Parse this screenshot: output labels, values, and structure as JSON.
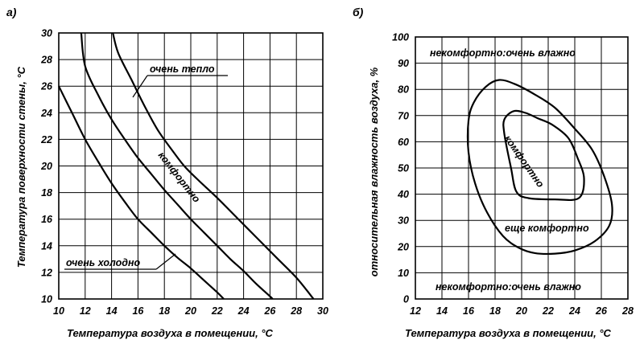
{
  "chart_data": [
    {
      "panel": "a)",
      "type": "line",
      "xlabel": "Температура воздуха в помещении, °C",
      "ylabel": "Температура поверхности стены, °C",
      "xlim": [
        10,
        30
      ],
      "ylim": [
        10,
        30
      ],
      "xticks": [
        "10",
        "12",
        "14",
        "16",
        "18",
        "20",
        "22",
        "24",
        "26",
        "28",
        "30"
      ],
      "yticks": [
        "10",
        "12",
        "14",
        "16",
        "18",
        "20",
        "22",
        "24",
        "26",
        "28",
        "30"
      ],
      "grid": true,
      "series": [
        {
          "points": [
            [
              10,
              26
            ],
            [
              11,
              24
            ],
            [
              12,
              22
            ],
            [
              13,
              20.3
            ],
            [
              14,
              18.7
            ],
            [
              15,
              17.3
            ],
            [
              16,
              16
            ],
            [
              17,
              15
            ],
            [
              18,
              14
            ],
            [
              19,
              13.1
            ],
            [
              20,
              12.3
            ],
            [
              21,
              11.4
            ],
            [
              22,
              10.5
            ],
            [
              22.5,
              10
            ]
          ]
        },
        {
          "points": [
            [
              11.7,
              30
            ],
            [
              12,
              27.5
            ],
            [
              13,
              25.3
            ],
            [
              14,
              23.5
            ],
            [
              15,
              22
            ],
            [
              16,
              20.6
            ],
            [
              17,
              19.4
            ],
            [
              18,
              18.2
            ],
            [
              19,
              17.1
            ],
            [
              20,
              16
            ],
            [
              21,
              15
            ],
            [
              22,
              14
            ],
            [
              23,
              13
            ],
            [
              24,
              12.1
            ],
            [
              25,
              11.1
            ],
            [
              26,
              10.2
            ],
            [
              26.2,
              10
            ]
          ]
        },
        {
          "points": [
            [
              14.1,
              30
            ],
            [
              14.5,
              28.5
            ],
            [
              15.5,
              26.5
            ],
            [
              16.5,
              24.5
            ],
            [
              17.5,
              22.7
            ],
            [
              18.5,
              21.3
            ],
            [
              19.5,
              20
            ],
            [
              20.5,
              19
            ],
            [
              22,
              17.6
            ],
            [
              23.5,
              16.1
            ],
            [
              25,
              14.6
            ],
            [
              26.5,
              13.1
            ],
            [
              28,
              11.6
            ],
            [
              29.3,
              10
            ]
          ]
        }
      ],
      "annotations": [
        {
          "text": "очень тепло",
          "x": 17,
          "y": 26.7
        },
        {
          "text": "комфортно",
          "x": 20,
          "y": 19.2
        },
        {
          "text": "очень холодно",
          "x": 11,
          "y": 12.2
        }
      ]
    },
    {
      "panel": "б)",
      "type": "line",
      "xlabel": "Температура воздуха в помещении, °C",
      "ylabel": "относительная влажность воздуха, %",
      "xlim": [
        12,
        28
      ],
      "ylim": [
        0,
        100
      ],
      "xticks": [
        "12",
        "14",
        "16",
        "18",
        "20",
        "22",
        "24",
        "26",
        "28"
      ],
      "yticks": [
        "0",
        "10",
        "20",
        "30",
        "40",
        "50",
        "60",
        "70",
        "80",
        "90",
        "100"
      ],
      "grid": true,
      "series": [
        {
          "closed": true,
          "points": [
            [
              16,
              68
            ],
            [
              16.4,
              75
            ],
            [
              17.3,
              81
            ],
            [
              18.3,
              83.6
            ],
            [
              19.5,
              82
            ],
            [
              21,
              78
            ],
            [
              22.5,
              73
            ],
            [
              24,
              65
            ],
            [
              25.3,
              57
            ],
            [
              26.2,
              47
            ],
            [
              26.8,
              36
            ],
            [
              26.6,
              28
            ],
            [
              25.5,
              22
            ],
            [
              24,
              18.5
            ],
            [
              22.5,
              17.3
            ],
            [
              21,
              17.5
            ],
            [
              19.8,
              19.5
            ],
            [
              18.6,
              24
            ],
            [
              17.4,
              33
            ],
            [
              16.5,
              44
            ],
            [
              16,
              56
            ],
            [
              16,
              68
            ]
          ]
        },
        {
          "closed": true,
          "points": [
            [
              18.7,
              68.5
            ],
            [
              19.4,
              71.7
            ],
            [
              20.3,
              71
            ],
            [
              21.2,
              69
            ],
            [
              22.3,
              66.5
            ],
            [
              23.5,
              61.5
            ],
            [
              24.2,
              54
            ],
            [
              24.7,
              46
            ],
            [
              24.3,
              38.5
            ],
            [
              22.5,
              38
            ],
            [
              20.5,
              38.5
            ],
            [
              19.6,
              41
            ],
            [
              19.2,
              50
            ],
            [
              18.7,
              63
            ],
            [
              18.7,
              68.5
            ]
          ]
        }
      ],
      "annotations": [
        {
          "text": "некомфортно:очень влажно",
          "x": 14,
          "y": 92.5
        },
        {
          "text": "комфортно",
          "x": 21,
          "y": 53
        },
        {
          "text": "еще комфортно",
          "x": 19.3,
          "y": 26.5
        },
        {
          "text": "некомфортно:очень влажно",
          "x": 14.2,
          "y": 4.5
        }
      ]
    }
  ]
}
